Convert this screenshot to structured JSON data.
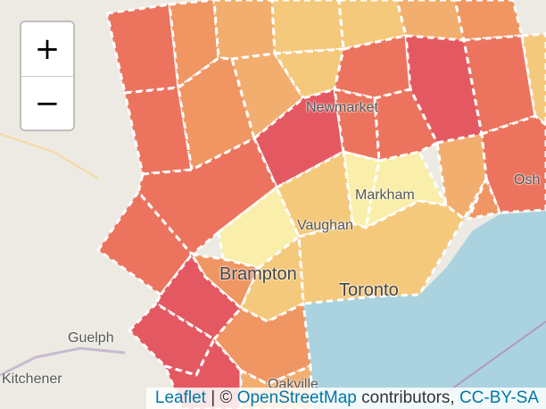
{
  "zoom": {
    "in_label": "+",
    "out_label": "−"
  },
  "attribution": {
    "leaflet": "Leaflet",
    "separator": " | © ",
    "osm": "OpenStreetMap",
    "contributors": " contributors, ",
    "license": "CC-BY-SA"
  },
  "places": {
    "newmarket": "Newmarket",
    "markham": "Markham",
    "vaughan": "Vaughan",
    "brampton": "Brampton",
    "toronto": "Toronto",
    "guelph": "Guelph",
    "kitchener": "Kitchener",
    "oshawa": "Osh",
    "oakville": "Oakville"
  },
  "colors": {
    "land": "#eceae2",
    "water": "#aad3df",
    "red": "#e3404a",
    "red_orange": "#ec5f47",
    "orange": "#f1874c",
    "light_orange": "#f3a35a",
    "yellow_orange": "#f7c36a",
    "pale_yellow": "#fbf0a0"
  }
}
